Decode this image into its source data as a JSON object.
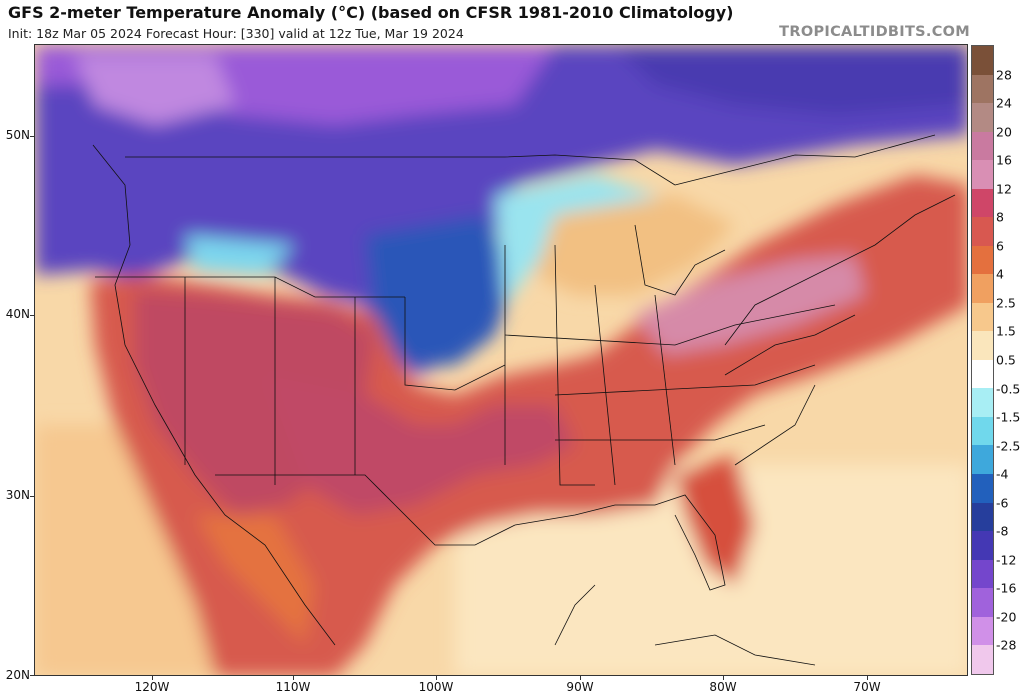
{
  "header": {
    "title": "GFS 2-meter Temperature Anomaly (°C) (based on CFSR 1981-2010 Climatology)",
    "subtitle": "Init: 18z Mar 05 2024   Forecast Hour: [330]   valid at 12z Tue, Mar 19 2024",
    "brand": "TROPICALTIDBITS.COM"
  },
  "map": {
    "lat_labels": [
      "50N",
      "40N",
      "30N",
      "20N"
    ],
    "lon_labels": [
      "120W",
      "110W",
      "100W",
      "90W",
      "80W",
      "70W"
    ],
    "icons": {
      "basemap": "north-america-map",
      "contours": "state-boundary-lines"
    }
  },
  "colorbar": {
    "labels": [
      "28",
      "24",
      "20",
      "16",
      "12",
      "8",
      "6",
      "4",
      "2.5",
      "1.5",
      "0.5",
      "-0.5",
      "-1.5",
      "-2.5",
      "-4",
      "-6",
      "-8",
      "-12",
      "-16",
      "-20",
      "-28"
    ],
    "colors": [
      "#7a5038",
      "#9e7462",
      "#b38a84",
      "#c97aa0",
      "#d98fb4",
      "#cf4668",
      "#d85850",
      "#e4703e",
      "#f0a060",
      "#f7c88c",
      "#fae6bc",
      "#ffffff",
      "#a8eef4",
      "#70d8ec",
      "#3ea8dc",
      "#2260bc",
      "#263e9c",
      "#4438b4",
      "#7446cc",
      "#a062dc",
      "#d090e8",
      "#f0c8ec"
    ]
  },
  "colors": {
    "accent_warm": "#c8465a",
    "accent_cold": "#3a3eb4",
    "frame": "#333333"
  }
}
